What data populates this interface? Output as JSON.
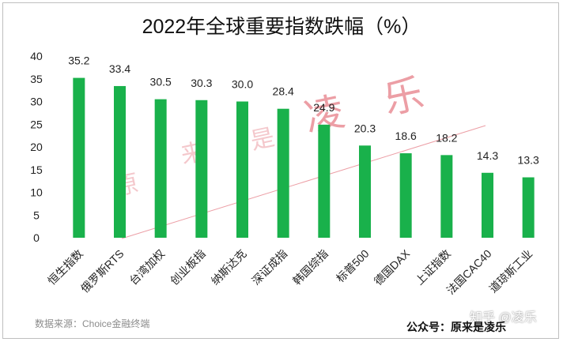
{
  "chart_data": {
    "type": "bar",
    "title": "2022年全球重要指数跌幅（%）",
    "categories": [
      "恒生指数",
      "俄罗斯RTS",
      "台湾加权",
      "创业板指",
      "纳斯达克",
      "深证成指",
      "韩国综指",
      "标普500",
      "德国DAX",
      "上证指数",
      "法国CAC40",
      "道琼斯工业"
    ],
    "values": [
      35.2,
      33.4,
      30.5,
      30.3,
      30.0,
      28.4,
      24.9,
      20.3,
      18.6,
      18.2,
      14.3,
      13.3
    ],
    "value_labels": [
      "35.2",
      "33.4",
      "30.5",
      "30.3",
      "30.0",
      "28.4",
      "24.9",
      "20.3",
      "18.6",
      "18.2",
      "14.3",
      "13.3"
    ],
    "ylim": [
      0,
      40
    ],
    "yticks": [
      0,
      5,
      10,
      15,
      20,
      25,
      30,
      35,
      40
    ],
    "xlabel": "",
    "ylabel": "",
    "grid": false,
    "bar_color": "#19b14b"
  },
  "footer": {
    "source": "数据来源：Choice金融终端",
    "wechat": "公众号：原来是凌乐",
    "zhihu": "知乎 @凌乐"
  },
  "watermark": {
    "text": [
      "原",
      "来",
      "是",
      "凌",
      "乐"
    ],
    "color": "#e7868e"
  }
}
